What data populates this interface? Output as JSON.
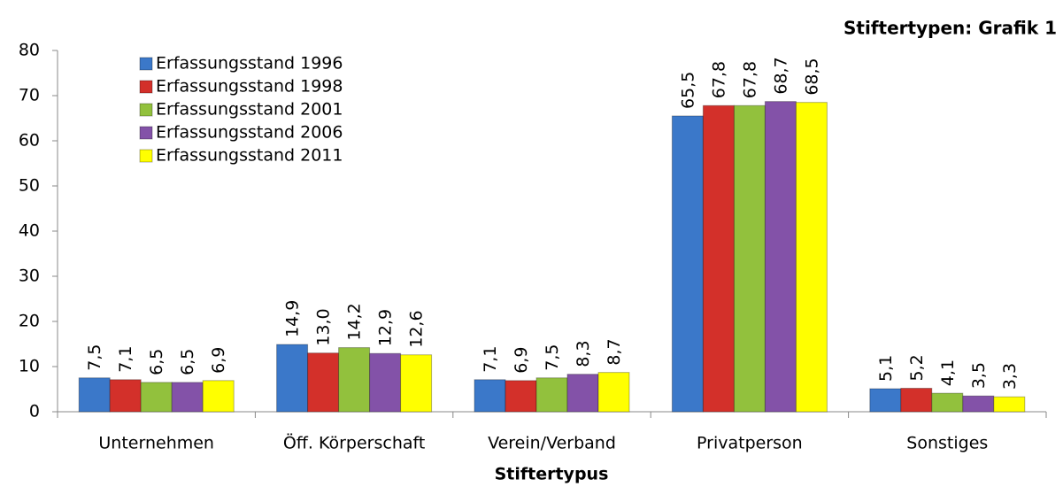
{
  "chart_data": {
    "type": "bar",
    "title": "Stiftertypen: Grafik 1",
    "x_label": "Stiftertypus",
    "categories": [
      "Unternehmen",
      "Öff. Körperschaft",
      "Verein/Verband",
      "Privatperson",
      "Sonstiges"
    ],
    "series": [
      {
        "name": "Erfassungsstand 1996",
        "color": "#3b78c9",
        "values": [
          7.5,
          14.9,
          7.1,
          65.5,
          5.1
        ],
        "value_labels": [
          "7,5",
          "14,9",
          "7,1",
          "65,5",
          "5,1"
        ]
      },
      {
        "name": "Erfassungsstand 1998",
        "color": "#d3302a",
        "values": [
          7.1,
          13.0,
          6.9,
          67.8,
          5.2
        ],
        "value_labels": [
          "7,1",
          "13,0",
          "6,9",
          "67,8",
          "5,2"
        ]
      },
      {
        "name": "Erfassungsstand 2001",
        "color": "#92c13d",
        "values": [
          6.5,
          14.2,
          7.5,
          67.8,
          4.1
        ],
        "value_labels": [
          "6,5",
          "14,2",
          "7,5",
          "67,8",
          "4,1"
        ]
      },
      {
        "name": "Erfassungsstand 2006",
        "color": "#8352a8",
        "values": [
          6.5,
          12.9,
          8.3,
          68.7,
          3.5
        ],
        "value_labels": [
          "6,5",
          "12,9",
          "8,3",
          "68,7",
          "3,5"
        ]
      },
      {
        "name": "Erfassungsstand 2011",
        "color": "#ffff00",
        "values": [
          6.9,
          12.6,
          8.7,
          68.5,
          3.3
        ],
        "value_labels": [
          "6,9",
          "12,6",
          "8,7",
          "68,5",
          "3,3"
        ]
      }
    ],
    "ylim": [
      0,
      80
    ],
    "yticks": [
      0,
      10,
      20,
      30,
      40,
      50,
      60,
      70,
      80
    ],
    "grid": false,
    "legend": "upper left"
  }
}
